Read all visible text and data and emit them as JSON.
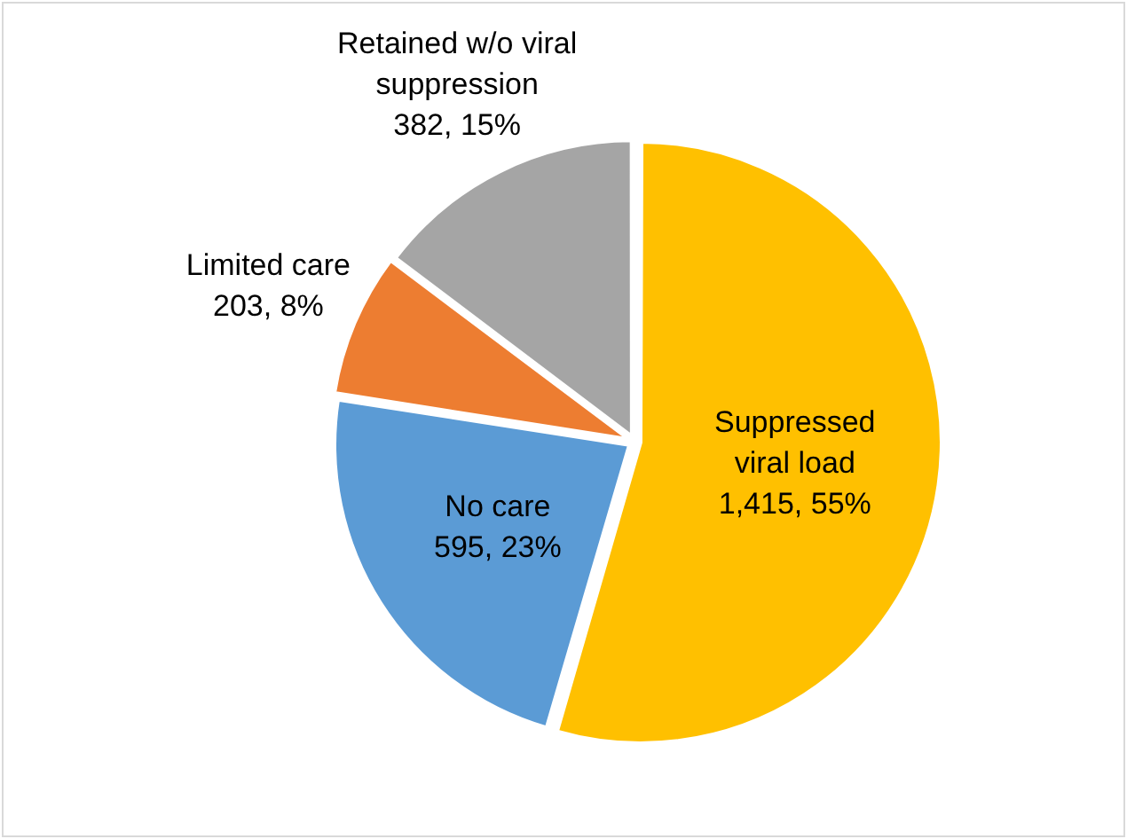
{
  "chart_data": {
    "type": "pie",
    "categories": [
      "Suppressed viral load",
      "No care",
      "Limited care",
      "Retained w/o viral suppression"
    ],
    "values": [
      1415,
      595,
      203,
      382
    ],
    "colors": [
      "#ffc000",
      "#5b9bd5",
      "#ed7d31",
      "#a5a5a5"
    ],
    "value_labels": [
      "1,415, 55%",
      "595, 23%",
      "203, 8%",
      "382, 15%"
    ],
    "legend": false
  }
}
